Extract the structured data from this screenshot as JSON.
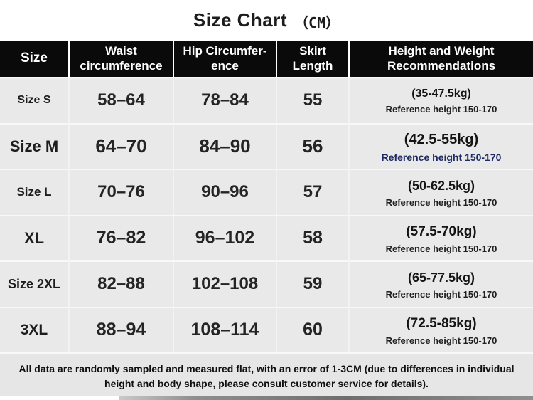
{
  "colors": {
    "header_bg": "#0a0a0a",
    "header_text": "#ffffff",
    "row_bg": "#e9e9e9",
    "separator": "#f8f8f8",
    "title_text": "#1c1c1c",
    "body_text": "#222222",
    "ref_navy": "#1e2a63",
    "footer_bg": "#e6e6e6",
    "strip": "#8f8f8f",
    "page_bg": "#ffffff"
  },
  "title": {
    "main": "Size Chart",
    "unit": "（CM）"
  },
  "table": {
    "headers": [
      "Size",
      "Waist\ncircumference",
      "Hip Circumfer-\nence",
      "Skirt\nLength",
      "Height and Weight\nRecommendations"
    ]
  },
  "chart_data": {
    "type": "table",
    "title": "Size Chart (CM)",
    "columns": [
      "Size",
      "Waist circumference",
      "Hip Circumference",
      "Skirt Length",
      "Height and Weight Recommendations"
    ],
    "rows": [
      {
        "size": "Size S",
        "waist": "58–64",
        "hip": "78–84",
        "skirt_length": "55",
        "weight_range": "(35-47.5kg)",
        "reference_height": "Reference height 150-170"
      },
      {
        "size": "Size M",
        "waist": "64–70",
        "hip": "84–90",
        "skirt_length": "56",
        "weight_range": "(42.5-55kg)",
        "reference_height": "Reference height 150-170"
      },
      {
        "size": "Size L",
        "waist": "70–76",
        "hip": "90–96",
        "skirt_length": "57",
        "weight_range": "(50-62.5kg)",
        "reference_height": "Reference height 150-170"
      },
      {
        "size": "XL",
        "waist": "76–82",
        "hip": "96–102",
        "skirt_length": "58",
        "weight_range": "(57.5-70kg)",
        "reference_height": "Reference height 150-170"
      },
      {
        "size": "Size 2XL",
        "waist": "82–88",
        "hip": "102–108",
        "skirt_length": "59",
        "weight_range": "(65-77.5kg)",
        "reference_height": "Reference height 150-170"
      },
      {
        "size": "3XL",
        "waist": "88–94",
        "hip": "108–114",
        "skirt_length": "60",
        "weight_range": "(72.5-85kg)",
        "reference_height": "Reference height 150-170"
      }
    ],
    "footnote": "All data are randomly sampled and measured flat, with an error of 1-3CM (due to differences in individual height and body shape, please consult customer service for details)."
  },
  "footer": {
    "line1": "All data are randomly sampled and measured flat, with an error of 1-3CM (due to differences in individual",
    "line2": "height and body shape, please consult customer service for details)."
  }
}
